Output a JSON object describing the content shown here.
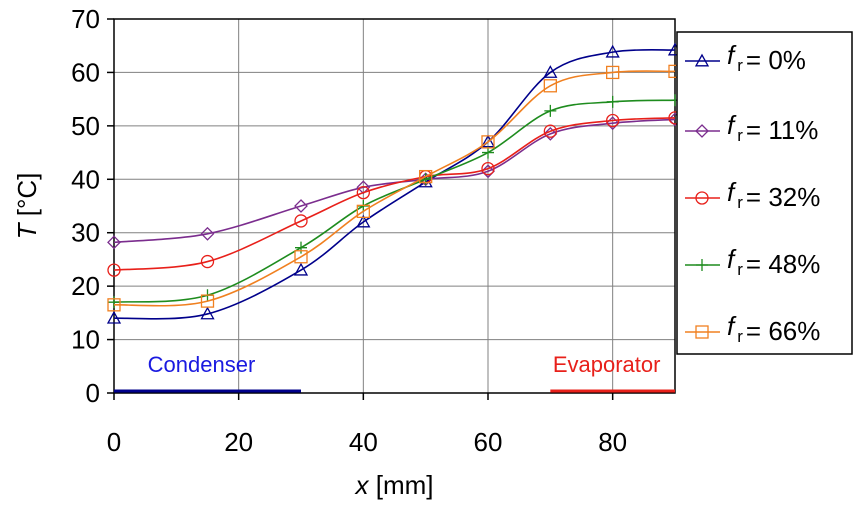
{
  "chart_data": {
    "type": "line",
    "xlabel_symbol": "x",
    "xlabel_unit": "[mm]",
    "ylabel_symbol": "T",
    "ylabel_unit": "[°C]",
    "xlim": [
      0,
      90
    ],
    "ylim": [
      0,
      70
    ],
    "xticks": [
      0,
      20,
      40,
      60,
      80
    ],
    "yticks": [
      0,
      10,
      20,
      30,
      40,
      50,
      60,
      70
    ],
    "grid": true,
    "legend_position": "right",
    "legend_symbol": "f",
    "legend_subscript": "r",
    "x": [
      0,
      15,
      30,
      40,
      50,
      60,
      70,
      80,
      90
    ],
    "series": [
      {
        "label": "= 0%",
        "color": "#00008B",
        "marker": "triangle",
        "values": [
          14.0,
          14.8,
          23.0,
          32.0,
          39.5,
          47.0,
          60.0,
          63.8,
          64.2
        ]
      },
      {
        "label": "= 11%",
        "color": "#7B2D8E",
        "marker": "diamond",
        "values": [
          28.2,
          29.8,
          35.0,
          38.5,
          40.0,
          41.5,
          48.5,
          50.5,
          51.2
        ]
      },
      {
        "label": "= 32%",
        "color": "#E8201A",
        "marker": "circle",
        "values": [
          23.0,
          24.6,
          32.2,
          37.5,
          40.5,
          42.0,
          49.0,
          51.0,
          51.5
        ]
      },
      {
        "label": "= 48%",
        "color": "#1E8C1E",
        "marker": "plus",
        "values": [
          17.0,
          18.3,
          27.2,
          35.0,
          40.0,
          45.0,
          52.8,
          54.5,
          54.8
        ]
      },
      {
        "label": "= 66%",
        "color": "#F08020",
        "marker": "square",
        "values": [
          16.5,
          17.2,
          25.5,
          34.0,
          40.5,
          47.0,
          57.5,
          60.0,
          60.2
        ]
      }
    ],
    "regions": [
      {
        "label": "Condenser",
        "x_start": 0,
        "x_end": 30,
        "color": "#1A1AE0",
        "line_color": "#00008B"
      },
      {
        "label": "Evaporator",
        "x_start": 70,
        "x_end": 90,
        "color": "#E8201A",
        "line_color": "#E8201A"
      }
    ]
  }
}
